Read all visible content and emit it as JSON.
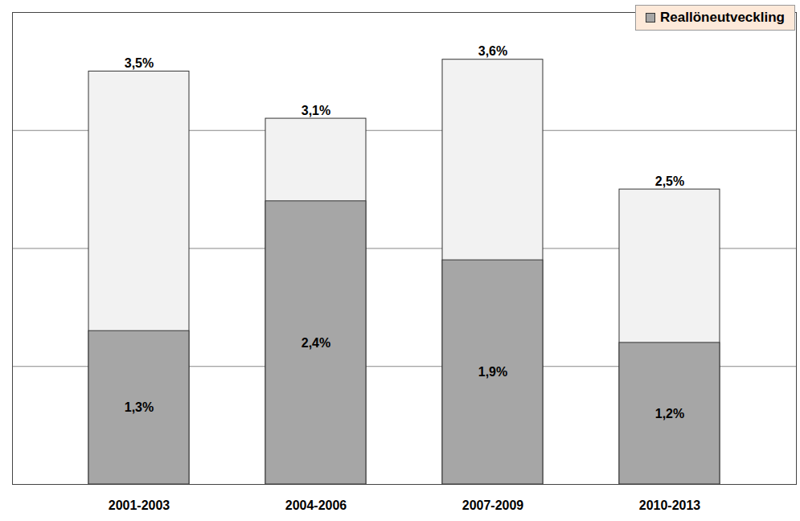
{
  "chart_data": {
    "type": "bar",
    "categories": [
      "2001-2003",
      "2004-2006",
      "2007-2009",
      "2010-2013"
    ],
    "series": [
      {
        "name": null,
        "color": "#f2f2f2",
        "values": [
          3.5,
          3.1,
          3.6,
          2.5
        ],
        "value_labels": [
          "3,5%",
          "3,1%",
          "3,6%",
          "2,5%"
        ]
      },
      {
        "name": "Reallöneutveckling",
        "color": "#a6a6a6",
        "values": [
          1.3,
          2.4,
          1.9,
          1.2
        ],
        "value_labels": [
          "1,3%",
          "2,4%",
          "1,9%",
          "1,2%"
        ]
      }
    ],
    "ylim": [
      0,
      4
    ],
    "yticks": [
      0,
      1,
      2,
      3,
      4
    ],
    "grid": true,
    "tick_labels": "x",
    "stacked": false,
    "data_labels": true,
    "legend": "top-right"
  }
}
